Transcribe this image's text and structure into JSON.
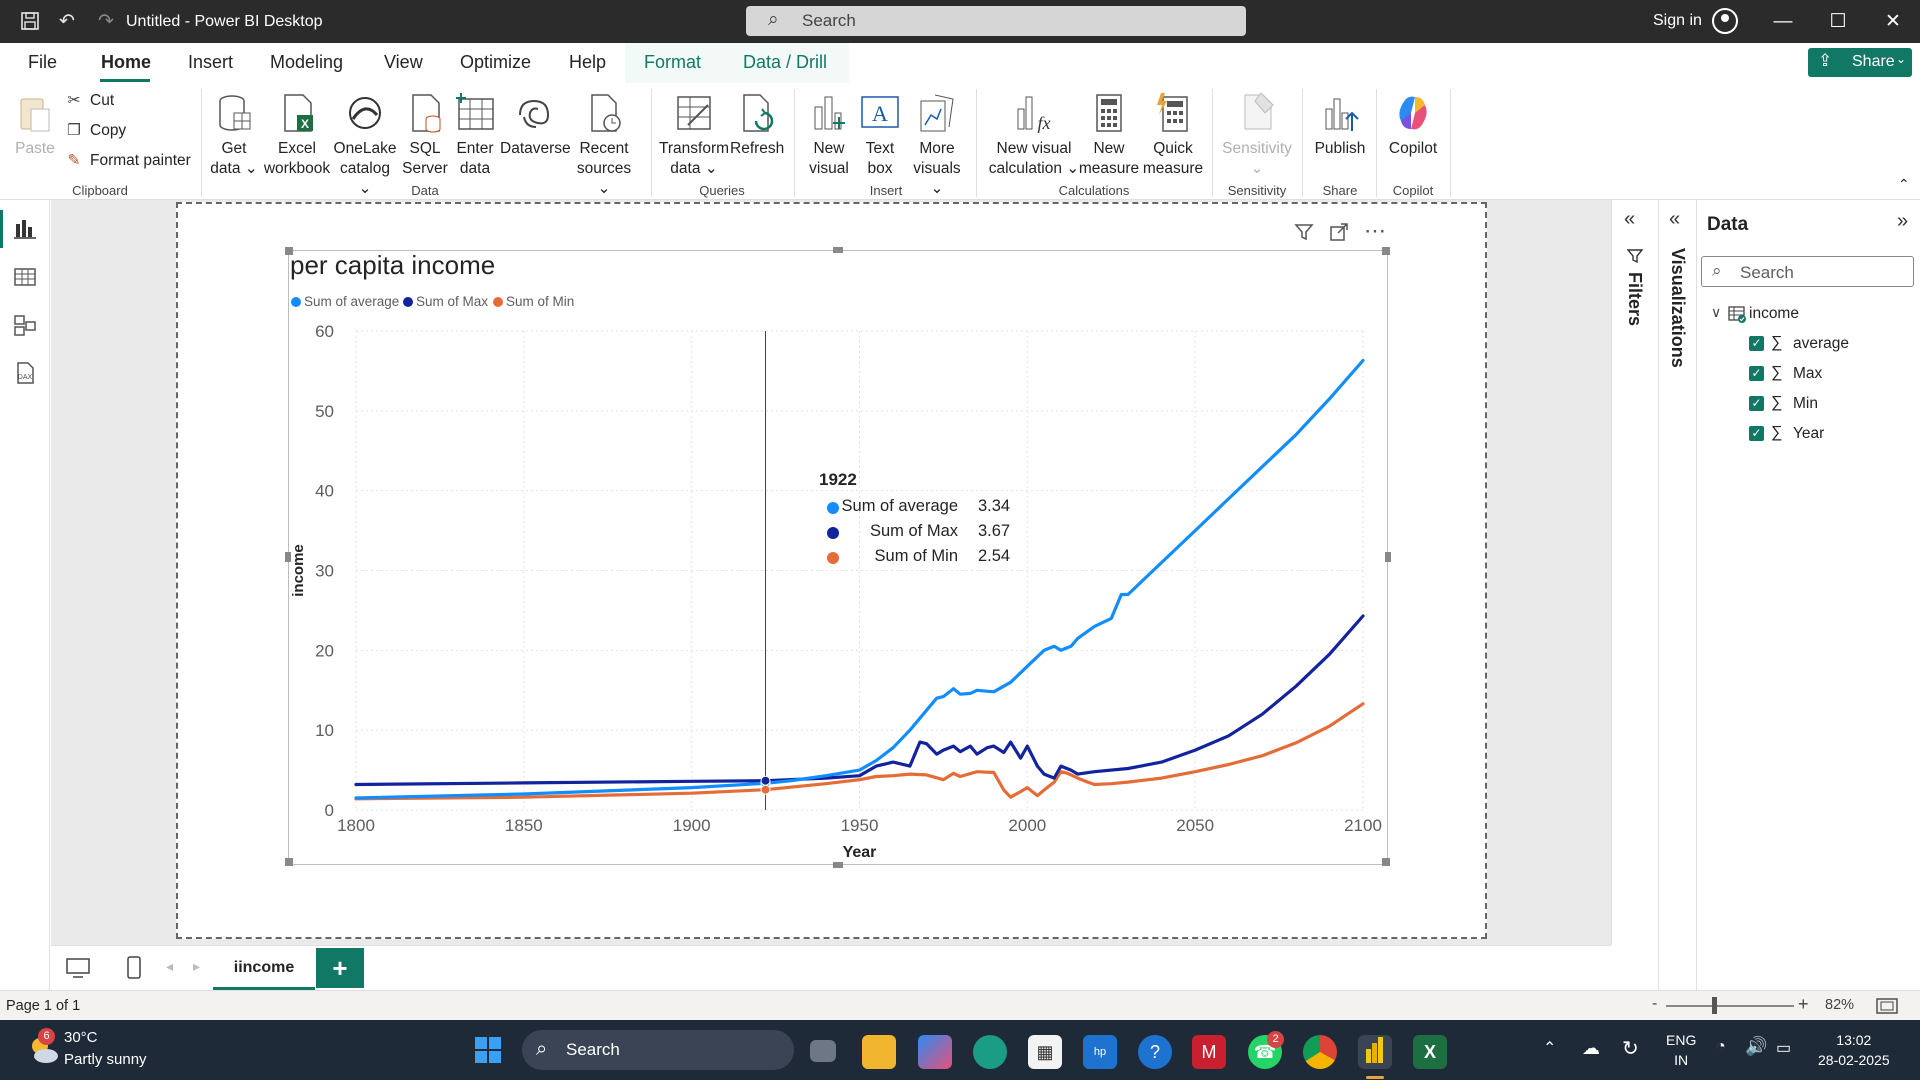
{
  "window": {
    "title": "Untitled - Power BI Desktop",
    "search_placeholder": "Search",
    "sign_in": "Sign in"
  },
  "menu": {
    "items": [
      "File",
      "Home",
      "Insert",
      "Modeling",
      "View",
      "Optimize",
      "Help",
      "Format",
      "Data / Drill"
    ],
    "active": "Home",
    "share": "Share"
  },
  "ribbon": {
    "clipboard": {
      "paste": "Paste",
      "cut": "Cut",
      "copy": "Copy",
      "format_painter": "Format painter",
      "group": "Clipboard"
    },
    "data": {
      "get_data": [
        "Get",
        "data"
      ],
      "excel": [
        "Excel",
        "workbook"
      ],
      "onelake": [
        "OneLake",
        "catalog"
      ],
      "sql": [
        "SQL",
        "Server"
      ],
      "enter": [
        "Enter",
        "data"
      ],
      "dataverse": "Dataverse",
      "recent": [
        "Recent",
        "sources"
      ],
      "group": "Data"
    },
    "queries": {
      "transform": [
        "Transform",
        "data"
      ],
      "refresh": "Refresh",
      "group": "Queries"
    },
    "insert": {
      "new_visual": [
        "New",
        "visual"
      ],
      "text_box": [
        "Text",
        "box"
      ],
      "more_visuals": [
        "More",
        "visuals"
      ],
      "group": "Insert"
    },
    "calculations": {
      "new_visual_calc": [
        "New visual",
        "calculation"
      ],
      "new_measure": [
        "New",
        "measure"
      ],
      "quick_measure": [
        "Quick",
        "measure"
      ],
      "group": "Calculations"
    },
    "sensitivity": {
      "label": "Sensitivity",
      "group": "Sensitivity"
    },
    "share": {
      "publish": "Publish",
      "group": "Share"
    },
    "copilot": {
      "label": "Copilot",
      "group": "Copilot"
    }
  },
  "panes": {
    "filters": "Filters",
    "visualizations": "Visualizations",
    "data": {
      "title": "Data",
      "search_placeholder": "Search",
      "table": "income",
      "fields": [
        "average",
        "Max",
        "Min",
        "Year"
      ]
    }
  },
  "tabs": {
    "page_tab": "iincome",
    "add": "+"
  },
  "status": {
    "page": "Page 1 of 1",
    "zoom": "82%"
  },
  "taskbar": {
    "temp": "30°C",
    "weather": "Partly sunny",
    "weather_badge": "6",
    "search": "Search",
    "whatsapp_badge": "2",
    "lang1": "ENG",
    "lang2": "IN",
    "time": "13:02",
    "date": "28-02-2025"
  },
  "tooltip": {
    "year": "1922",
    "rows": [
      {
        "name": "Sum of average",
        "value": "3.34",
        "color": "#118dff"
      },
      {
        "name": "Sum of Max",
        "value": "3.67",
        "color": "#12239e"
      },
      {
        "name": "Sum of Min",
        "value": "2.54",
        "color": "#e66c37"
      }
    ]
  },
  "chart_data": {
    "type": "line",
    "title": "per capita income",
    "xlabel": "Year",
    "ylabel": "income",
    "xlim": [
      1800,
      2100
    ],
    "ylim": [
      0,
      60
    ],
    "x_ticks": [
      1800,
      1850,
      1900,
      1950,
      2000,
      2050,
      2100
    ],
    "y_ticks": [
      0,
      10,
      20,
      30,
      40,
      50,
      60
    ],
    "grid": true,
    "legend_position": "top-left",
    "hover_x": 1922,
    "series": [
      {
        "name": "Sum of average",
        "color": "#118dff",
        "x": [
          1800,
          1850,
          1900,
          1922,
          1930,
          1940,
          1950,
          1955,
          1960,
          1965,
          1970,
          1973,
          1975,
          1978,
          1980,
          1983,
          1985,
          1990,
          1995,
          2000,
          2005,
          2008,
          2010,
          2013,
          2015,
          2020,
          2025,
          2028,
          2030,
          2040,
          2050,
          2060,
          2070,
          2080,
          2090,
          2100
        ],
        "y": [
          1.5,
          2.0,
          2.8,
          3.34,
          3.7,
          4.3,
          5.0,
          6.2,
          7.8,
          10.0,
          12.5,
          14.0,
          14.2,
          15.2,
          14.5,
          14.6,
          15.0,
          14.8,
          16.0,
          18.0,
          20.0,
          20.5,
          20.0,
          20.5,
          21.5,
          23.0,
          24.0,
          27.0,
          27.0,
          31.0,
          35.0,
          39.0,
          43.0,
          47.0,
          51.5,
          56.3
        ]
      },
      {
        "name": "Sum of Max",
        "color": "#12239e",
        "x": [
          1800,
          1850,
          1900,
          1922,
          1940,
          1950,
          1955,
          1960,
          1965,
          1968,
          1970,
          1973,
          1975,
          1978,
          1980,
          1983,
          1985,
          1988,
          1990,
          1993,
          1995,
          1998,
          2000,
          2003,
          2005,
          2008,
          2010,
          2013,
          2015,
          2020,
          2030,
          2040,
          2050,
          2060,
          2070,
          2080,
          2090,
          2100
        ],
        "y": [
          3.2,
          3.4,
          3.6,
          3.67,
          4.0,
          4.3,
          5.5,
          6.0,
          5.5,
          8.5,
          8.3,
          7.0,
          7.5,
          8.0,
          7.3,
          8.0,
          7.0,
          7.8,
          8.0,
          7.2,
          8.5,
          6.5,
          8.0,
          5.5,
          4.5,
          4.0,
          5.5,
          5.0,
          4.5,
          4.8,
          5.2,
          6.0,
          7.5,
          9.3,
          12.0,
          15.5,
          19.5,
          24.3
        ]
      },
      {
        "name": "Sum of Min",
        "color": "#e66c37",
        "x": [
          1800,
          1850,
          1900,
          1922,
          1940,
          1950,
          1955,
          1960,
          1965,
          1970,
          1975,
          1978,
          1980,
          1985,
          1990,
          1993,
          1995,
          1998,
          2000,
          2003,
          2005,
          2008,
          2010,
          2012,
          2015,
          2018,
          2020,
          2025,
          2030,
          2040,
          2050,
          2060,
          2070,
          2080,
          2090,
          2100
        ],
        "y": [
          1.4,
          1.6,
          2.1,
          2.54,
          3.3,
          3.8,
          4.2,
          4.3,
          4.5,
          4.4,
          3.8,
          4.6,
          4.2,
          4.8,
          4.7,
          2.5,
          1.6,
          2.3,
          2.8,
          1.8,
          2.5,
          3.5,
          4.8,
          4.6,
          4.0,
          3.5,
          3.2,
          3.3,
          3.5,
          4.0,
          4.8,
          5.7,
          6.8,
          8.4,
          10.5,
          13.3
        ]
      }
    ]
  }
}
